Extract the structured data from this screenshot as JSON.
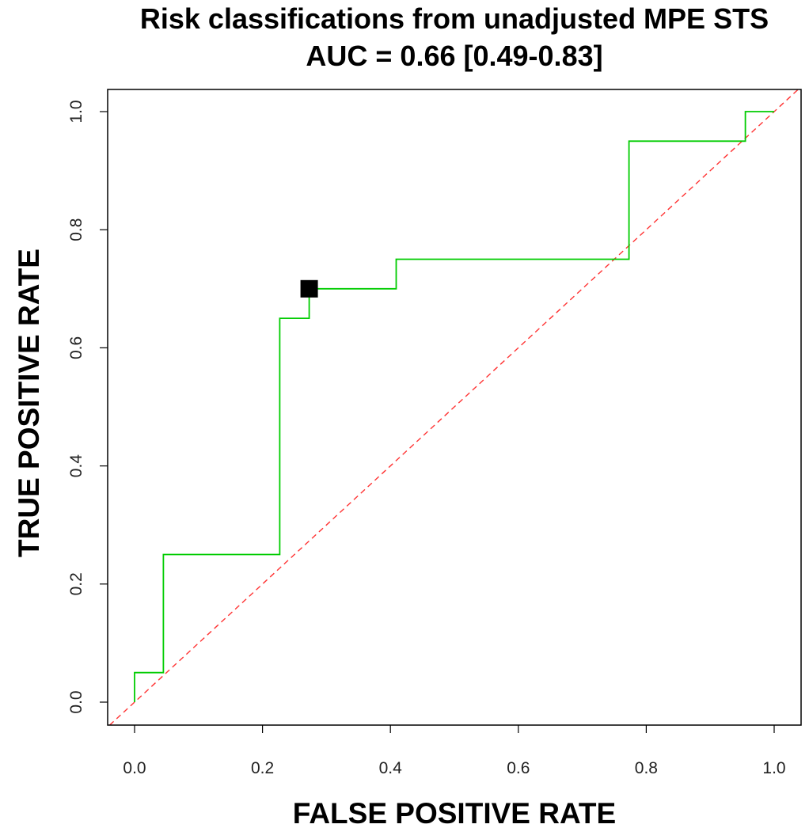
{
  "chart_data": {
    "type": "line",
    "title": "Risk classifications from unadjusted MPE STS",
    "subtitle": "AUC = 0.66 [0.49-0.83]",
    "xlabel": "FALSE POSITIVE RATE",
    "ylabel": "TRUE POSITIVE RATE",
    "xlim": [
      0,
      1
    ],
    "ylim": [
      0,
      1
    ],
    "xticks": [
      "0.0",
      "0.2",
      "0.4",
      "0.6",
      "0.8",
      "1.0"
    ],
    "yticks": [
      "0.0",
      "0.2",
      "0.4",
      "0.6",
      "0.8",
      "1.0"
    ],
    "grid": false,
    "colors": {
      "roc_curve": "#00cc00",
      "reference_line": "#ff3333",
      "marker": "#000000",
      "frame": "#000000"
    },
    "series": [
      {
        "style": "step",
        "x": [
          0.0,
          0.0,
          0.045,
          0.045,
          0.227,
          0.227,
          0.273,
          0.273,
          0.409,
          0.409,
          0.773,
          0.773,
          0.955,
          0.955,
          1.0
        ],
        "y": [
          0.0,
          0.05,
          0.05,
          0.25,
          0.25,
          0.65,
          0.65,
          0.7,
          0.7,
          0.75,
          0.75,
          0.95,
          0.95,
          1.0,
          1.0
        ]
      },
      {
        "style": "dashed-diagonal",
        "x": [
          -0.05,
          1.05
        ],
        "y": [
          -0.05,
          1.05
        ]
      }
    ],
    "highlight_point": {
      "x": 0.273,
      "y": 0.7,
      "marker": "filled-square"
    }
  }
}
